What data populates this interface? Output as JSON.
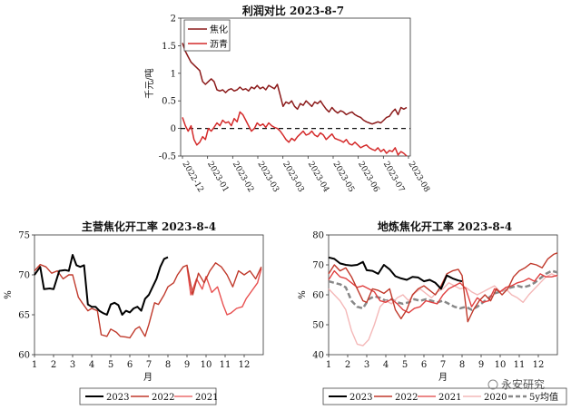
{
  "watermark": "永安研究",
  "chart_data": [
    {
      "type": "line",
      "title": "利润对比 2023-8-7",
      "ylabel": "千元/吨",
      "ylim": [
        -0.5,
        2.0
      ],
      "yticks": [
        "-0.5",
        "0",
        "0.5",
        "1",
        "1.5",
        "2"
      ],
      "x_labels": [
        "2022-12",
        "2023-01",
        "2023-02",
        "2023-03",
        "2023-03",
        "2023-04",
        "2023-05",
        "2023-06",
        "2023-07",
        "2023-08"
      ],
      "zero_line": "dashed",
      "legend_position": "top-left",
      "series": [
        {
          "name": "焦化",
          "color": "#8b1a1a",
          "values": [
            1.55,
            1.4,
            1.3,
            1.2,
            1.15,
            1.1,
            1.05,
            0.85,
            0.8,
            0.85,
            0.9,
            0.85,
            0.7,
            0.68,
            0.7,
            0.65,
            0.7,
            0.72,
            0.68,
            0.7,
            0.75,
            0.7,
            0.72,
            0.68,
            0.75,
            0.72,
            0.78,
            0.72,
            0.75,
            0.7,
            0.78,
            0.75,
            0.72,
            0.8,
            0.6,
            0.4,
            0.48,
            0.45,
            0.5,
            0.4,
            0.35,
            0.45,
            0.42,
            0.5,
            0.45,
            0.4,
            0.48,
            0.45,
            0.5,
            0.42,
            0.35,
            0.3,
            0.38,
            0.32,
            0.28,
            0.32,
            0.3,
            0.25,
            0.28,
            0.3,
            0.25,
            0.22,
            0.2,
            0.15,
            0.12,
            0.1,
            0.08,
            0.1,
            0.12,
            0.1,
            0.15,
            0.2,
            0.22,
            0.3,
            0.35,
            0.25,
            0.38,
            0.35,
            0.38
          ]
        },
        {
          "name": "沥青",
          "color": "#d42a2a",
          "values": [
            0.2,
            0.05,
            -0.05,
            0.05,
            -0.2,
            -0.3,
            -0.25,
            -0.15,
            -0.2,
            0.0,
            -0.05,
            0.02,
            0.1,
            0.05,
            0.15,
            0.1,
            0.12,
            0.05,
            0.18,
            0.12,
            0.3,
            0.25,
            0.15,
            0.05,
            -0.05,
            0.0,
            0.1,
            0.05,
            0.08,
            0.02,
            0.1,
            0.05,
            0.02,
            0.0,
            -0.05,
            -0.12,
            -0.2,
            -0.25,
            -0.18,
            -0.22,
            -0.15,
            -0.1,
            -0.05,
            -0.12,
            -0.1,
            -0.05,
            -0.12,
            -0.15,
            -0.08,
            -0.12,
            -0.2,
            -0.15,
            -0.1,
            -0.18,
            -0.2,
            -0.22,
            -0.25,
            -0.2,
            -0.28,
            -0.3,
            -0.25,
            -0.3,
            -0.35,
            -0.32,
            -0.3,
            -0.35,
            -0.38,
            -0.4,
            -0.35,
            -0.42,
            -0.38,
            -0.45,
            -0.4,
            -0.42,
            -0.35,
            -0.48,
            -0.42,
            -0.45,
            -0.5
          ]
        }
      ]
    },
    {
      "type": "line",
      "title": "主营焦化开工率 2023-8-4",
      "xlabel": "月",
      "ylabel": "%",
      "xlim": [
        1,
        13
      ],
      "ylim": [
        60,
        75
      ],
      "xticks": [
        "1",
        "2",
        "3",
        "4",
        "5",
        "6",
        "7",
        "8",
        "9",
        "10",
        "11",
        "12"
      ],
      "yticks": [
        "60",
        "65",
        "70",
        "75"
      ],
      "legend_position": "bottom",
      "series": [
        {
          "name": "2023",
          "color": "#000000",
          "x": [
            1,
            1.3,
            1.5,
            1.8,
            2.0,
            2.3,
            2.6,
            2.8,
            3.0,
            3.2,
            3.4,
            3.6,
            3.8,
            4.0,
            4.2,
            4.4,
            4.6,
            4.8,
            5.0,
            5.2,
            5.4,
            5.6,
            5.8,
            6.0,
            6.2,
            6.4,
            6.6,
            6.8,
            7.0,
            7.2,
            7.4,
            7.6,
            7.8,
            8.0
          ],
          "y": [
            70.0,
            71.0,
            68.2,
            68.3,
            68.2,
            70.5,
            70.6,
            70.5,
            72.5,
            71.2,
            71.0,
            71.2,
            66.3,
            66.0,
            66.0,
            65.5,
            65.2,
            65.0,
            66.3,
            66.5,
            66.2,
            65.0,
            65.5,
            65.3,
            65.8,
            66.0,
            65.5,
            67.0,
            67.5,
            68.5,
            69.5,
            71.0,
            72.0,
            72.2
          ]
        },
        {
          "name": "2022",
          "color": "#c0392b",
          "x": [
            1,
            1.3,
            1.6,
            1.9,
            2.2,
            2.5,
            2.8,
            3.0,
            3.3,
            3.5,
            3.8,
            4.0,
            4.3,
            4.5,
            4.8,
            5.0,
            5.3,
            5.5,
            5.8,
            6.0,
            6.3,
            6.5,
            6.8,
            7.0,
            7.3,
            7.5,
            7.8,
            8.0,
            8.3,
            8.5,
            8.8,
            9.0,
            9.3,
            9.6,
            9.9,
            10.2,
            10.5,
            10.8,
            11.1,
            11.4,
            11.7,
            12.0,
            12.3,
            12.6,
            12.9
          ],
          "y": [
            70.5,
            71.3,
            71.0,
            70.2,
            70.5,
            69.5,
            70.0,
            70.0,
            67.2,
            66.5,
            65.5,
            65.8,
            65.5,
            62.5,
            62.3,
            63.2,
            62.8,
            62.3,
            62.2,
            62.1,
            63.2,
            63.5,
            62.3,
            63.8,
            66.5,
            66.3,
            67.5,
            68.5,
            69.0,
            70.0,
            71.0,
            71.2,
            67.5,
            70.2,
            69.0,
            70.5,
            71.5,
            71.0,
            70.0,
            68.5,
            70.5,
            70.0,
            70.5,
            69.5,
            71.0
          ]
        },
        {
          "name": "2021",
          "color": "#e85050",
          "x": [
            9.0,
            9.2,
            9.5,
            9.8,
            10.0,
            10.3,
            10.6,
            10.9,
            11.1,
            11.3,
            11.6,
            11.9,
            12.1,
            12.4,
            12.7,
            12.9
          ],
          "y": [
            71.0,
            67.5,
            69.5,
            68.2,
            69.8,
            67.8,
            68.5,
            66.2,
            65.0,
            65.2,
            65.8,
            66.0,
            67.0,
            68.0,
            69.0,
            70.8
          ]
        }
      ]
    },
    {
      "type": "line",
      "title": "地炼焦化开工率 2023-8-4",
      "xlabel": "月",
      "ylabel": "%",
      "xlim": [
        1,
        13
      ],
      "ylim": [
        40,
        80
      ],
      "xticks": [
        "1",
        "2",
        "3",
        "4",
        "5",
        "6",
        "7",
        "8",
        "9",
        "10",
        "11",
        "12"
      ],
      "yticks": [
        "40",
        "50",
        "60",
        "70",
        "80"
      ],
      "legend_position": "bottom",
      "series": [
        {
          "name": "2023",
          "color": "#000000",
          "x": [
            1,
            1.3,
            1.6,
            1.9,
            2.2,
            2.5,
            2.8,
            3.0,
            3.3,
            3.6,
            3.9,
            4.2,
            4.5,
            4.8,
            5.1,
            5.4,
            5.7,
            6.0,
            6.3,
            6.6,
            6.9,
            7.2,
            7.5,
            7.8,
            8.0
          ],
          "y": [
            72.5,
            72.0,
            70.5,
            70.0,
            69.8,
            70.0,
            71.0,
            68.2,
            68.0,
            67.0,
            70.0,
            68.5,
            66.2,
            65.5,
            65.0,
            66.0,
            65.8,
            64.5,
            65.0,
            64.0,
            62.0,
            66.5,
            65.5,
            64.8,
            64.5
          ]
        },
        {
          "name": "2022",
          "color": "#c0392b",
          "x": [
            1,
            1.3,
            1.6,
            1.9,
            2.2,
            2.5,
            2.8,
            3.0,
            3.3,
            3.6,
            3.9,
            4.2,
            4.5,
            4.8,
            5.1,
            5.4,
            5.7,
            6.0,
            6.3,
            6.6,
            6.9,
            7.2,
            7.5,
            7.8,
            8.0,
            8.3,
            8.6,
            8.9,
            9.2,
            9.5,
            9.8,
            10.1,
            10.4,
            10.7,
            11.0,
            11.3,
            11.6,
            11.9,
            12.2,
            12.5,
            12.8,
            13.0
          ],
          "y": [
            67.0,
            70.0,
            68.0,
            69.0,
            66.0,
            62.0,
            58.0,
            57.5,
            62.0,
            61.5,
            60.5,
            62.0,
            55.0,
            52.0,
            55.0,
            60.0,
            62.0,
            63.0,
            61.5,
            60.0,
            63.0,
            67.0,
            68.0,
            68.5,
            66.5,
            51.0,
            55.0,
            58.0,
            60.0,
            58.0,
            62.0,
            60.0,
            62.0,
            66.0,
            68.0,
            69.0,
            70.5,
            70.0,
            69.0,
            72.0,
            73.5,
            74.0
          ]
        },
        {
          "name": "2021",
          "color": "#e04040",
          "x": [
            1,
            1.3,
            1.6,
            1.9,
            2.2,
            2.5,
            2.8,
            3.1,
            3.4,
            3.7,
            4.0,
            4.3,
            4.6,
            4.9,
            5.2,
            5.5,
            5.8,
            6.1,
            6.4,
            6.7,
            7.0,
            7.3,
            7.6,
            7.9,
            8.2,
            8.5,
            8.8,
            9.1,
            9.4,
            9.7,
            10.0,
            10.3,
            10.6,
            10.9,
            11.2,
            11.5,
            11.8,
            12.1,
            12.4,
            12.7,
            13.0
          ],
          "y": [
            65.0,
            68.0,
            66.0,
            65.5,
            64.0,
            62.5,
            63.0,
            62.0,
            61.0,
            58.0,
            57.5,
            58.5,
            57.0,
            55.0,
            54.0,
            55.5,
            56.0,
            58.0,
            57.5,
            57.0,
            60.0,
            62.0,
            63.0,
            64.0,
            62.0,
            56.0,
            59.0,
            57.5,
            58.0,
            62.0,
            61.0,
            62.5,
            63.0,
            64.0,
            64.5,
            65.5,
            64.5,
            67.0,
            66.0,
            66.0,
            66.5
          ]
        },
        {
          "name": "2020",
          "color": "#f4b8b8",
          "x": [
            1,
            1.3,
            1.6,
            1.9,
            2.2,
            2.5,
            2.8,
            3.1,
            3.4,
            3.7,
            4.0,
            4.3,
            4.6,
            4.9,
            5.2,
            5.5,
            5.8,
            6.1,
            6.4,
            6.7,
            7.0,
            7.3,
            7.6,
            7.9,
            8.2,
            8.5,
            8.8,
            9.1,
            9.4,
            9.7,
            10.0,
            10.3,
            10.6,
            10.9,
            11.2,
            11.5,
            11.8,
            12.1,
            12.4,
            12.7,
            13.0
          ],
          "y": [
            62.0,
            60.0,
            58.0,
            55.0,
            48.0,
            43.5,
            43.0,
            45.0,
            50.0,
            56.0,
            58.0,
            57.0,
            59.0,
            60.0,
            58.0,
            60.5,
            62.0,
            60.5,
            59.0,
            61.0,
            62.0,
            64.0,
            63.0,
            62.0,
            62.5,
            61.0,
            60.0,
            61.0,
            62.0,
            63.0,
            61.0,
            62.0,
            60.0,
            59.0,
            57.5,
            60.0,
            62.0,
            64.0,
            66.0,
            67.0,
            66.0
          ]
        },
        {
          "name": "5y均值",
          "color": "#888888",
          "dash": true,
          "x": [
            1,
            1.3,
            1.6,
            1.9,
            2.2,
            2.5,
            2.8,
            3.1,
            3.4,
            3.7,
            4.0,
            4.3,
            4.6,
            4.9,
            5.2,
            5.5,
            5.8,
            6.1,
            6.4,
            6.7,
            7.0,
            7.3,
            7.6,
            7.9,
            8.2,
            8.5,
            8.8,
            9.1,
            9.4,
            9.7,
            10.0,
            10.3,
            10.6,
            10.9,
            11.2,
            11.5,
            11.8,
            12.1,
            12.4,
            12.7,
            13.0
          ],
          "y": [
            64.5,
            64.0,
            63.5,
            62.5,
            58.0,
            56.0,
            55.5,
            58.5,
            59.5,
            59.0,
            58.0,
            58.5,
            57.5,
            57.0,
            57.5,
            58.5,
            58.0,
            58.5,
            58.0,
            57.5,
            58.0,
            57.0,
            56.0,
            55.5,
            56.0,
            55.0,
            56.0,
            57.5,
            59.0,
            60.5,
            61.0,
            62.0,
            62.5,
            63.0,
            62.5,
            63.0,
            64.0,
            65.5,
            67.0,
            68.0,
            67.5
          ]
        }
      ]
    }
  ]
}
